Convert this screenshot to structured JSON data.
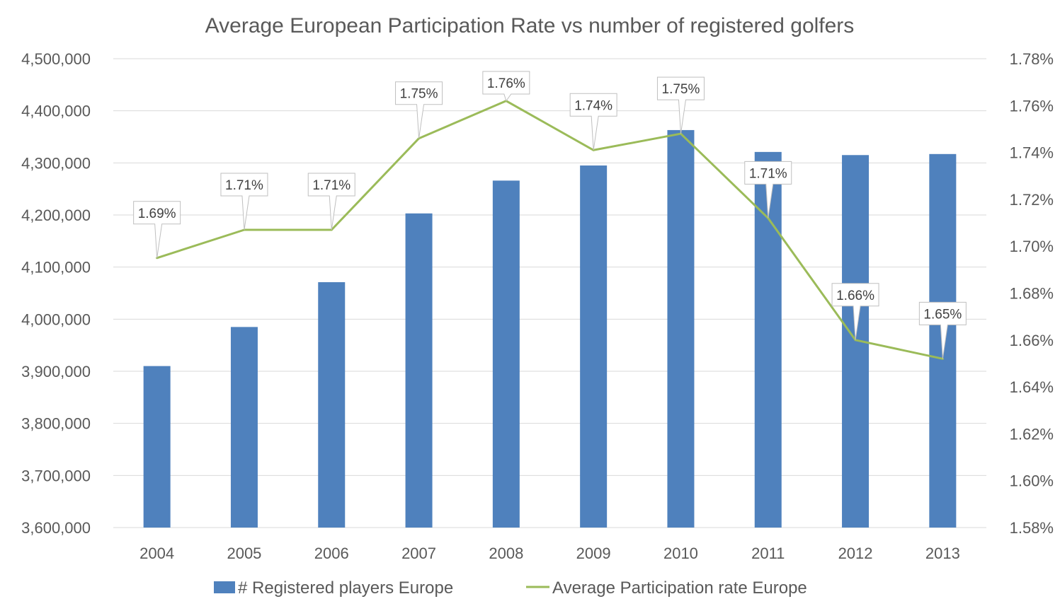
{
  "chart_data": {
    "type": "bar+line",
    "title": "Average European Participation Rate vs number of registered golfers",
    "categories": [
      "2004",
      "2005",
      "2006",
      "2007",
      "2008",
      "2009",
      "2010",
      "2011",
      "2012",
      "2013"
    ],
    "series": [
      {
        "name": "# Registered players Europe",
        "type": "bar",
        "axis": "left",
        "color": "#4F81BD",
        "values": [
          3910000,
          3985000,
          4071000,
          4203000,
          4266000,
          4295000,
          4363000,
          4321000,
          4315000,
          4317000
        ]
      },
      {
        "name": "Average Participation rate Europe",
        "type": "line",
        "axis": "right",
        "color": "#9BBB59",
        "values": [
          1.695,
          1.707,
          1.707,
          1.746,
          1.762,
          1.741,
          1.748,
          1.712,
          1.66,
          1.652
        ],
        "labels": [
          "1.69%",
          "1.71%",
          "1.71%",
          "1.75%",
          "1.76%",
          "1.74%",
          "1.75%",
          "1.71%",
          "1.66%",
          "1.65%"
        ]
      }
    ],
    "left_axis": {
      "min": 3600000,
      "max": 4500000,
      "step": 100000,
      "tick_labels": [
        "3,600,000",
        "3,700,000",
        "3,800,000",
        "3,900,000",
        "4,000,000",
        "4,100,000",
        "4,200,000",
        "4,300,000",
        "4,400,000",
        "4,500,000"
      ]
    },
    "right_axis": {
      "min": 1.58,
      "max": 1.78,
      "step": 0.02,
      "tick_labels": [
        "1.58%",
        "1.60%",
        "1.62%",
        "1.64%",
        "1.66%",
        "1.68%",
        "1.70%",
        "1.72%",
        "1.74%",
        "1.76%",
        "1.78%"
      ]
    },
    "grid": true,
    "legend_position": "bottom"
  }
}
